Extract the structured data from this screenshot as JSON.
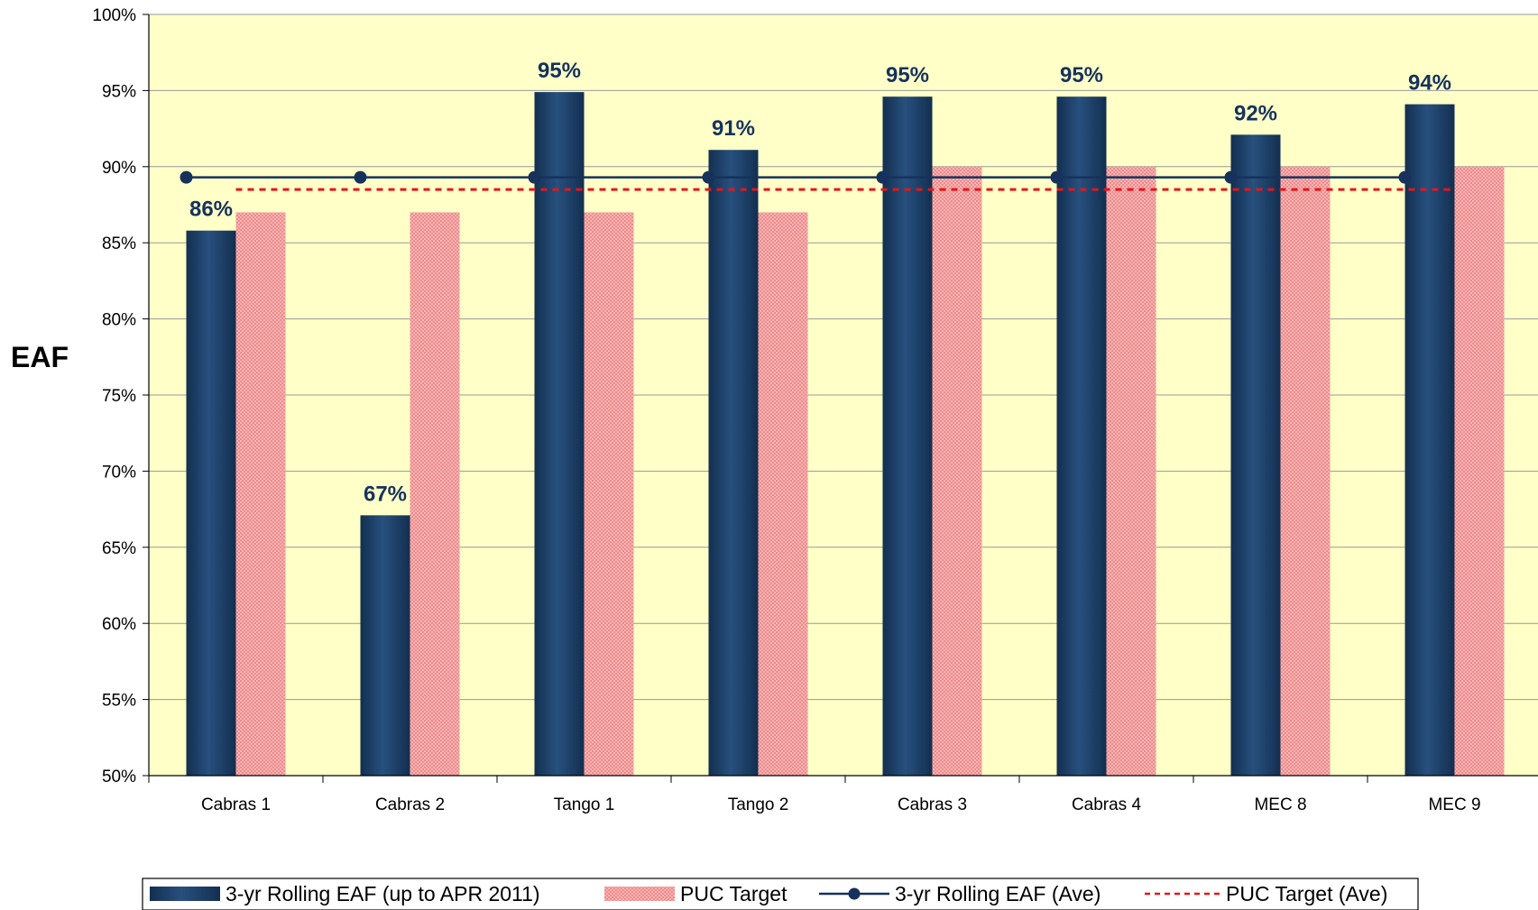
{
  "chart_data": {
    "type": "bar",
    "categories": [
      "Cabras 1",
      "Cabras 2",
      "Tango 1",
      "Tango 2",
      "Cabras 3",
      "Cabras 4",
      "MEC 8",
      "MEC 9"
    ],
    "series": [
      {
        "name": "3-yr Rolling EAF (up to APR 2011)",
        "kind": "bar",
        "values": [
          85.8,
          67.1,
          94.9,
          91.1,
          94.6,
          94.6,
          92.1,
          94.1
        ],
        "data_labels": [
          "86%",
          "67%",
          "95%",
          "91%",
          "95%",
          "95%",
          "92%",
          "94%"
        ]
      },
      {
        "name": "PUC Target",
        "kind": "bar",
        "values": [
          87,
          87,
          87,
          87,
          90,
          90,
          90,
          90
        ]
      },
      {
        "name": "3-yr Rolling EAF (Ave)",
        "kind": "line",
        "values": [
          89.3,
          89.3,
          89.3,
          89.3,
          89.3,
          89.3,
          89.3,
          89.3
        ]
      },
      {
        "name": "PUC Target (Ave)",
        "kind": "dashed-line",
        "values": [
          88.5,
          88.5,
          88.5,
          88.5,
          88.5,
          88.5,
          88.5,
          88.5
        ]
      }
    ],
    "ylabel": "EAF",
    "xlabel": "",
    "ylim": [
      50,
      100
    ],
    "yticks": [
      "50%",
      "55%",
      "60%",
      "65%",
      "70%",
      "75%",
      "80%",
      "85%",
      "90%",
      "95%",
      "100%"
    ],
    "grid": true,
    "legend_position": "bottom",
    "colors": {
      "eaf_bar": "#1f4670",
      "eaf_bar_dark": "#132f50",
      "puc_bar": "#f4a0a0",
      "ave_line": "#16325c",
      "puc_ave_line": "#e8141a",
      "plot_bg": "#ffffc8",
      "grid": "#9a9a9a"
    }
  }
}
